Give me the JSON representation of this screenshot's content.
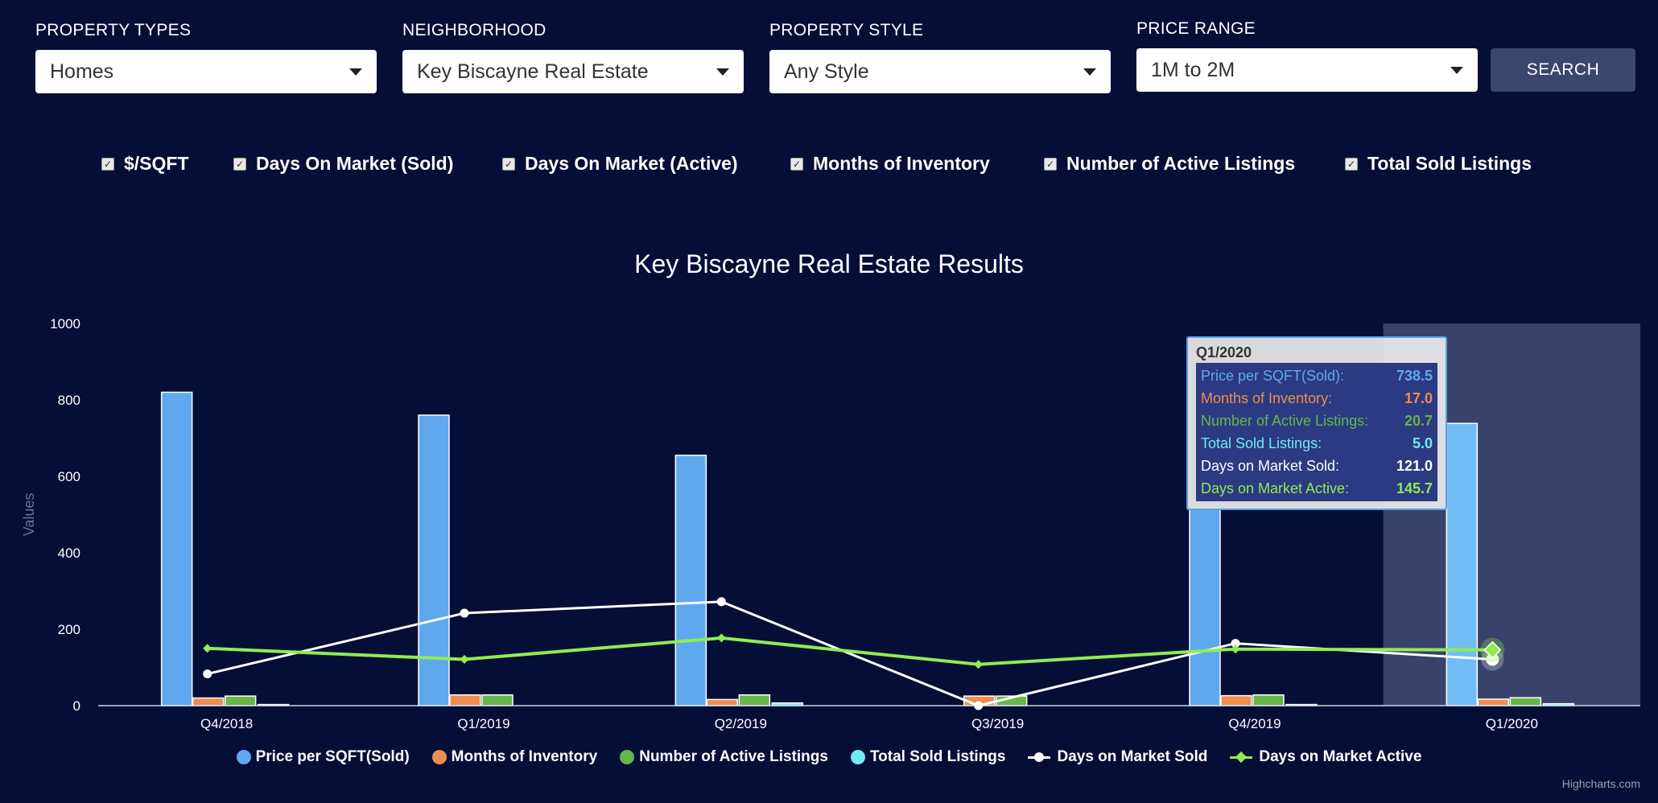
{
  "filters": [
    {
      "label": "PROPERTY TYPES",
      "value": "Homes"
    },
    {
      "label": "NEIGHBORHOOD",
      "value": "Key Biscayne Real Estate"
    },
    {
      "label": "PROPERTY STYLE",
      "value": "Any Style"
    },
    {
      "label": "PRICE RANGE",
      "value": "1M to 2M"
    }
  ],
  "search_label": "SEARCH",
  "checkboxes": [
    {
      "label": "$/SQFT",
      "checked": true
    },
    {
      "label": "Days On Market (Sold)",
      "checked": true
    },
    {
      "label": "Days On Market (Active)",
      "checked": true
    },
    {
      "label": "Months of Inventory",
      "checked": true
    },
    {
      "label": "Number of Active Listings",
      "checked": true
    },
    {
      "label": "Total Sold Listings",
      "checked": true
    }
  ],
  "chart_data": {
    "type": "bar",
    "title": "Key Biscayne Real Estate Results",
    "ylabel": "Values",
    "xlabel": "",
    "ylim": [
      0,
      1000
    ],
    "yticks": [
      0,
      200,
      400,
      600,
      800,
      1000
    ],
    "categories": [
      "Q4/2018",
      "Q1/2019",
      "Q2/2019",
      "Q3/2019",
      "Q4/2019",
      "Q1/2020"
    ],
    "highlighted_category": "Q1/2020",
    "series": [
      {
        "name": "Price per SQFT(Sold)",
        "type": "bar",
        "color": "#5fa8ee",
        "values": [
          820,
          760,
          655,
          0,
          515,
          738.5
        ]
      },
      {
        "name": "Months of Inventory",
        "type": "bar",
        "color": "#ef8c4f",
        "values": [
          20,
          28,
          16,
          25,
          26,
          17.0
        ]
      },
      {
        "name": "Number of Active Listings",
        "type": "bar",
        "color": "#66b649",
        "values": [
          25,
          28,
          28,
          25,
          28,
          20.7
        ]
      },
      {
        "name": "Total Sold Listings",
        "type": "bar",
        "color": "#72eaf2",
        "values": [
          3,
          0,
          7,
          0,
          3,
          5.0
        ]
      },
      {
        "name": "Days on Market Sold",
        "type": "line",
        "color": "#ffffff",
        "values": [
          83,
          242,
          272,
          0,
          163,
          121.0
        ]
      },
      {
        "name": "Days on Market Active",
        "type": "line",
        "color": "#8fed52",
        "values": [
          150,
          121,
          177,
          108,
          148,
          145.7
        ]
      }
    ],
    "tooltip": {
      "header": "Q1/2020",
      "rows": [
        {
          "label": "Price per SQFT(Sold):",
          "value": "738.5",
          "color": "#5fa8ee"
        },
        {
          "label": "Months of Inventory:",
          "value": "17.0",
          "color": "#ef8c4f"
        },
        {
          "label": "Number of Active Listings:",
          "value": "20.7",
          "color": "#66b649"
        },
        {
          "label": "Total Sold Listings:",
          "value": "5.0",
          "color": "#72eaf2"
        },
        {
          "label": "Days on Market Sold:",
          "value": "121.0",
          "color": "#ffffff"
        },
        {
          "label": "Days on Market Active:",
          "value": "145.7",
          "color": "#8fed52"
        }
      ]
    },
    "grid": false,
    "legend": "bottom-center"
  },
  "credit": "Highcharts.com"
}
